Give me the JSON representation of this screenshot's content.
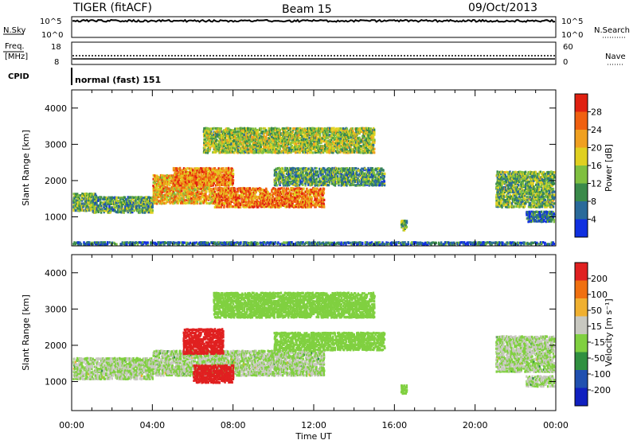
{
  "header": {
    "radar": "TIGER (fitACF)",
    "beam": "Beam 15",
    "date": "09/Oct/2013"
  },
  "top_panels": {
    "nsky_label": "N.Sky",
    "nsky_ticks": [
      "10^5",
      "10^0"
    ],
    "nsearch_label": "N.Search",
    "freq_label_1": "Freq.",
    "freq_label_2": "[MHz]",
    "freq_ticks": [
      "18",
      "8"
    ],
    "nave_label": "Nave",
    "nave_ticks": [
      "60",
      "0"
    ],
    "cpid_label": "CPID",
    "cpid_value": "normal (fast) 151"
  },
  "colors": {
    "power_scale": [
      "#1030e0",
      "#2a6a9a",
      "#3a8a4a",
      "#80c040",
      "#e0d020",
      "#f0a020",
      "#f06010",
      "#e02010"
    ],
    "velocity_scale": [
      "#1020c0",
      "#2050b0",
      "#309040",
      "#80d040",
      "#c8c8c0",
      "#f0b030",
      "#f07010",
      "#e02020"
    ]
  },
  "chart_data": [
    {
      "type": "heatmap",
      "panel": "power",
      "ylabel": "Slant Range [km]",
      "yticks": [
        "4000",
        "3000",
        "2000",
        "1000"
      ],
      "ylim": [
        200,
        4500
      ],
      "colorbar_label": "Power [dB]",
      "colorbar_ticks": [
        "28",
        "24",
        "20",
        "16",
        "12",
        "8",
        "4"
      ],
      "colorbar_range": [
        0,
        30
      ],
      "bands": [
        {
          "x": [
            0.0,
            1.2
          ],
          "y": [
            1200,
            1700
          ],
          "level": 12
        },
        {
          "x": [
            1.0,
            4.0
          ],
          "y": [
            1150,
            1600
          ],
          "level": 10
        },
        {
          "x": [
            4.0,
            7.0
          ],
          "y": [
            1400,
            2200
          ],
          "level": 20
        },
        {
          "x": [
            5.0,
            8.0
          ],
          "y": [
            1900,
            2400
          ],
          "level": 22
        },
        {
          "x": [
            7.0,
            12.5
          ],
          "y": [
            1300,
            1850
          ],
          "level": 23
        },
        {
          "x": [
            10.0,
            15.5
          ],
          "y": [
            1900,
            2400
          ],
          "level": 10
        },
        {
          "x": [
            6.5,
            15.0
          ],
          "y": [
            2800,
            3500
          ],
          "level": 14
        },
        {
          "x": [
            21.0,
            24.0
          ],
          "y": [
            1300,
            2300
          ],
          "level": 12
        },
        {
          "x": [
            22.5,
            24.0
          ],
          "y": [
            900,
            1200
          ],
          "level": 6
        },
        {
          "x": [
            16.3,
            16.6
          ],
          "y": [
            650,
            950
          ],
          "level": 12
        },
        {
          "x": [
            0.0,
            24.0
          ],
          "y": [
            200,
            350
          ],
          "level": 6
        }
      ]
    },
    {
      "type": "heatmap",
      "panel": "velocity",
      "xlabel": "Time UT",
      "xticks": [
        "00:00",
        "04:00",
        "08:00",
        "12:00",
        "16:00",
        "20:00",
        "00:00"
      ],
      "xlim": [
        0,
        24
      ],
      "ylabel": "Slant Range [km]",
      "yticks": [
        "4000",
        "3000",
        "2000",
        "1000"
      ],
      "ylim": [
        200,
        4500
      ],
      "colorbar_label": "Velocity [m s⁻¹]",
      "colorbar_ticks": [
        "200",
        "100",
        "50",
        "15",
        "-15",
        "-50",
        "-100",
        "-200"
      ],
      "colorbar_range": [
        -250,
        250
      ],
      "bands": [
        {
          "x": [
            0.0,
            4.0
          ],
          "y": [
            1100,
            1700
          ],
          "level": 0
        },
        {
          "x": [
            4.0,
            12.5
          ],
          "y": [
            1200,
            1900
          ],
          "level": 0
        },
        {
          "x": [
            10.0,
            15.5
          ],
          "y": [
            1900,
            2400
          ],
          "level": -40
        },
        {
          "x": [
            5.5,
            7.5
          ],
          "y": [
            1800,
            2500
          ],
          "level": 220
        },
        {
          "x": [
            6.0,
            8.0
          ],
          "y": [
            1000,
            1500
          ],
          "level": 220
        },
        {
          "x": [
            7.0,
            15.0
          ],
          "y": [
            2800,
            3500
          ],
          "level": -40
        },
        {
          "x": [
            21.0,
            24.0
          ],
          "y": [
            1300,
            2300
          ],
          "level": 0
        },
        {
          "x": [
            22.5,
            24.0
          ],
          "y": [
            900,
            1200
          ],
          "level": 0
        },
        {
          "x": [
            16.3,
            16.6
          ],
          "y": [
            700,
            950
          ],
          "level": -30
        }
      ]
    }
  ]
}
